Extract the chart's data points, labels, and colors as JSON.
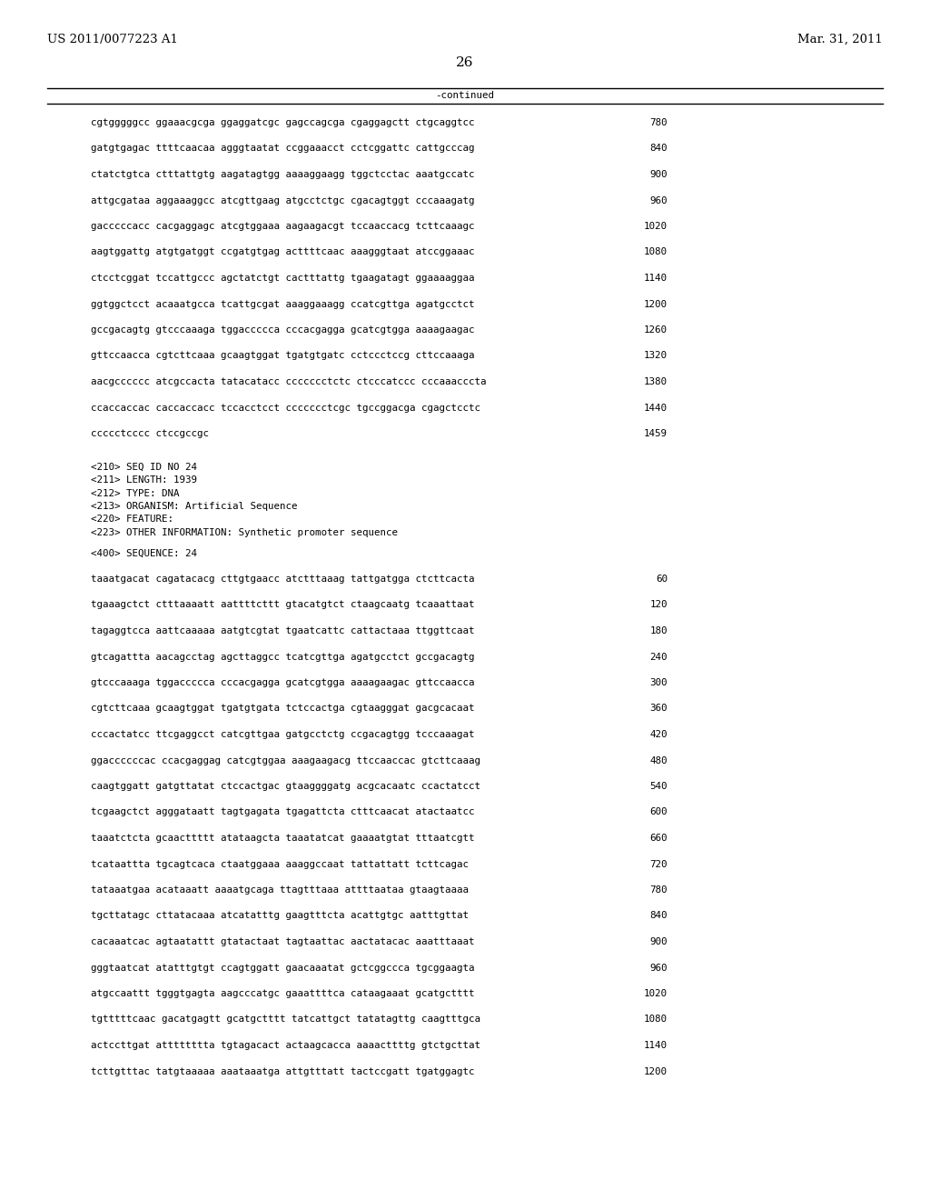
{
  "header_left": "US 2011/0077223 A1",
  "header_right": "Mar. 31, 2011",
  "page_number": "26",
  "continued_label": "-continued",
  "background_color": "#ffffff",
  "text_color": "#000000",
  "font_size_header": 9.5,
  "font_size_body": 7.8,
  "font_size_page": 11,
  "sequence_lines_top": [
    [
      "cgtgggggcc ggaaacgcga ggaggatcgc gagccagcga cgaggagctt ctgcaggtcc",
      "780"
    ],
    [
      "gatgtgagac ttttcaacaa agggtaatat ccggaaacct cctcggattc cattgcccag",
      "840"
    ],
    [
      "ctatctgtca ctttattgtg aagatagtgg aaaaggaagg tggctcctac aaatgccatc",
      "900"
    ],
    [
      "attgcgataa aggaaaggcc atcgttgaag atgcctctgc cgacagtggt cccaaagatg",
      "960"
    ],
    [
      "gacccccacc cacgaggagc atcgtggaaa aagaagacgt tccaaccacg tcttcaaagc",
      "1020"
    ],
    [
      "aagtggattg atgtgatggt ccgatgtgag acttttcaac aaagggtaat atccggaaac",
      "1080"
    ],
    [
      "ctcctcggat tccattgccc agctatctgt cactttattg tgaagatagt ggaaaaggaa",
      "1140"
    ],
    [
      "ggtggctcct acaaatgcca tcattgcgat aaaggaaagg ccatcgttga agatgcctct",
      "1200"
    ],
    [
      "gccgacagtg gtcccaaaga tggaccccca cccacgagga gcatcgtgga aaaagaagac",
      "1260"
    ],
    [
      "gttccaacca cgtcttcaaa gcaagtggat tgatgtgatc cctccctccg cttccaaaga",
      "1320"
    ],
    [
      "aacgcccccc atcgccacta tatacatacc ccccccctctc ctcccatccc cccaaacccta",
      "1380"
    ],
    [
      "ccaccaccac caccaccacc tccacctcct ccccccctcgc tgccggacga cgagctcctc",
      "1440"
    ],
    [
      "ccccctcccc ctccgccgc",
      "1459"
    ]
  ],
  "seq_id_block": [
    "<210> SEQ ID NO 24",
    "<211> LENGTH: 1939",
    "<212> TYPE: DNA",
    "<213> ORGANISM: Artificial Sequence",
    "<220> FEATURE:",
    "<223> OTHER INFORMATION: Synthetic promoter sequence"
  ],
  "seq400_label": "<400> SEQUENCE: 24",
  "sequence_lines_bottom": [
    [
      "taaatgacat cagatacacg cttgtgaacc atctttaaag tattgatgga ctcttcacta",
      "60"
    ],
    [
      "tgaaagctct ctttaaaatt aattttcttt gtacatgtct ctaagcaatg tcaaattaat",
      "120"
    ],
    [
      "tagaggtcca aattcaaaaa aatgtcgtat tgaatcattc cattactaaa ttggttcaat",
      "180"
    ],
    [
      "gtcagattta aacagcctag agcttaggcc tcatcgttga agatgcctct gccgacagtg",
      "240"
    ],
    [
      "gtcccaaaga tggaccccca cccacgagga gcatcgtgga aaaagaagac gttccaacca",
      "300"
    ],
    [
      "cgtcttcaaa gcaagtggat tgatgtgata tctccactga cgtaagggat gacgcacaat",
      "360"
    ],
    [
      "cccactatcc ttcgaggcct catcgttgaa gatgcctctg ccgacagtgg tcccaaagat",
      "420"
    ],
    [
      "ggaccccccac ccacgaggag catcgtggaa aaagaagacg ttccaaccac gtcttcaaag",
      "480"
    ],
    [
      "caagtggatt gatgttatat ctccactgac gtaaggggatg acgcacaatc ccactatcct",
      "540"
    ],
    [
      "tcgaagctct agggataatt tagtgagata tgagattcta ctttcaacat atactaatcc",
      "600"
    ],
    [
      "taaatctcta gcaacttttt atataagcta taaatatcat gaaaatgtat tttaatcgtt",
      "660"
    ],
    [
      "tcataattta tgcagtcaca ctaatggaaa aaaggccaat tattattatt tcttcagac",
      "720"
    ],
    [
      "tataaatgaa acataaatt aaaatgcaga ttagtttaaa attttaataa gtaagtaaaa",
      "780"
    ],
    [
      "tgcttatagc cttatacaaa atcatatttg gaagtttcta acattgtgc aatttgttat",
      "840"
    ],
    [
      "cacaaatcac agtaatattt gtatactaat tagtaattac aactatacac aaatttaaat",
      "900"
    ],
    [
      "gggtaatcat atatttgtgt ccagtggatt gaacaaatat gctcggccca tgcggaagta",
      "960"
    ],
    [
      "atgccaattt tgggtgagta aagcccatgc gaaattttca cataagaaat gcatgctttt",
      "1020"
    ],
    [
      "tgtttttcaac gacatgagtt gcatgctttt tatcattgct tatatagttg caagtttgca",
      "1080"
    ],
    [
      "actccttgat atttttttta tgtagacact actaagcacca aaaacttttg gtctgcttat",
      "1140"
    ],
    [
      "tcttgtttac tatgtaaaaa aaataaatga attgtttatt tactccgatt tgatggagtc",
      "1200"
    ]
  ]
}
